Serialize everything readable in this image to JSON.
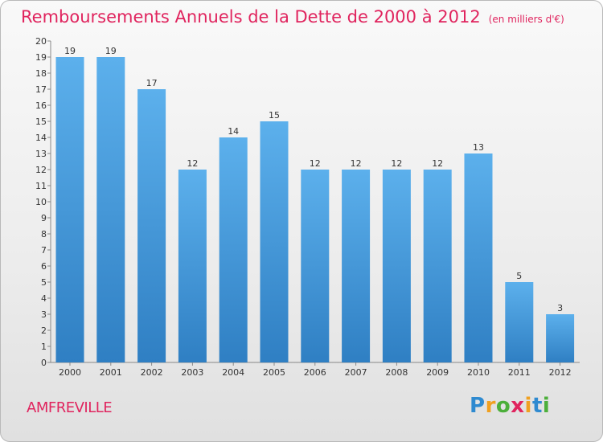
{
  "title": "Remboursements Annuels de la Dette de 2000 à 2012",
  "unit_note": "(en milliers d'€)",
  "commune": "AMFREVILLE",
  "brand": {
    "letters": [
      "P",
      "r",
      "o",
      "x",
      "i",
      "t",
      "i"
    ],
    "colors": [
      "#2e8ad0",
      "#f0a020",
      "#4caf3a",
      "#e0245e",
      "#f0a020",
      "#2e8ad0",
      "#4caf3a"
    ]
  },
  "colors": {
    "bar": "#4a9fdf",
    "title": "#e0245e"
  },
  "chart_data": {
    "type": "bar",
    "title": "Remboursements Annuels de la Dette de 2000 à 2012",
    "categories": [
      "2000",
      "2001",
      "2002",
      "2003",
      "2004",
      "2005",
      "2006",
      "2007",
      "2008",
      "2009",
      "2010",
      "2011",
      "2012"
    ],
    "values": [
      19,
      19,
      17,
      12,
      14,
      15,
      12,
      12,
      12,
      12,
      13,
      5,
      3
    ],
    "data_labels": [
      "19",
      "19",
      "17",
      "12",
      "14",
      "15",
      "12",
      "12",
      "12",
      "12",
      "13",
      "5",
      "3"
    ],
    "y_ticks": [
      "0",
      "1",
      "2",
      "3",
      "4",
      "5",
      "6",
      "7",
      "8",
      "9",
      "10",
      "11",
      "12",
      "13",
      "14",
      "15",
      "16",
      "17",
      "18",
      "19",
      "20"
    ],
    "ylim": [
      0,
      20
    ],
    "xlabel": "",
    "ylabel": "",
    "grid": false,
    "legend": "none"
  }
}
